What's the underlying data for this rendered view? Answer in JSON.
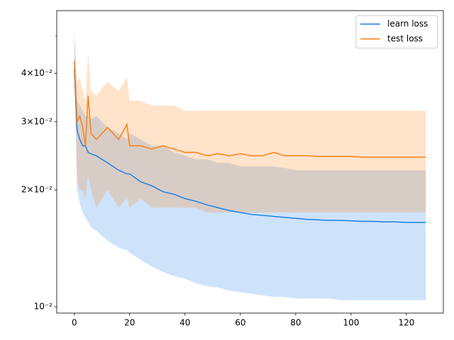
{
  "chart_data": {
    "type": "line",
    "log_y": true,
    "x": [
      0,
      1,
      2,
      3,
      4,
      5,
      6,
      8,
      12,
      16,
      19,
      20,
      24,
      28,
      32,
      36,
      40,
      44,
      48,
      52,
      56,
      60,
      64,
      68,
      72,
      76,
      80,
      84,
      88,
      92,
      96,
      100,
      104,
      108,
      112,
      116,
      120,
      124,
      127
    ],
    "series": [
      {
        "name": "learn loss",
        "color": "#1a80e8",
        "values": [
          0.041,
          0.0285,
          0.027,
          0.026,
          0.026,
          0.025,
          0.0248,
          0.0245,
          0.0235,
          0.0225,
          0.022,
          0.022,
          0.021,
          0.0205,
          0.0198,
          0.0195,
          0.019,
          0.0187,
          0.0183,
          0.018,
          0.0177,
          0.0175,
          0.0173,
          0.0172,
          0.0171,
          0.017,
          0.0169,
          0.0168,
          0.01675,
          0.0167,
          0.0167,
          0.01665,
          0.0166,
          0.0166,
          0.01655,
          0.01655,
          0.0165,
          0.0165,
          0.0165
        ],
        "lower": [
          0.041,
          0.02,
          0.0185,
          0.0175,
          0.017,
          0.0165,
          0.016,
          0.0157,
          0.0148,
          0.0142,
          0.014,
          0.0138,
          0.0132,
          0.0127,
          0.0123,
          0.012,
          0.0118,
          0.0115,
          0.0113,
          0.0112,
          0.011,
          0.0109,
          0.0108,
          0.0107,
          0.0106,
          0.0106,
          0.0105,
          0.0105,
          0.0105,
          0.0105,
          0.0104,
          0.0104,
          0.0104,
          0.0104,
          0.0104,
          0.0104,
          0.0104,
          0.0104,
          0.0104
        ],
        "upper": [
          0.052,
          0.034,
          0.033,
          0.032,
          0.031,
          0.031,
          0.0305,
          0.031,
          0.029,
          0.028,
          0.027,
          0.028,
          0.027,
          0.026,
          0.026,
          0.025,
          0.0245,
          0.024,
          0.024,
          0.0235,
          0.0235,
          0.023,
          0.023,
          0.023,
          0.023,
          0.0228,
          0.0225,
          0.0225,
          0.0225,
          0.0225,
          0.0225,
          0.0225,
          0.0225,
          0.0225,
          0.0225,
          0.0225,
          0.0225,
          0.0225,
          0.0225
        ]
      },
      {
        "name": "test loss",
        "color": "#ff7f0e",
        "values": [
          0.043,
          0.03,
          0.031,
          0.029,
          0.026,
          0.035,
          0.028,
          0.027,
          0.029,
          0.027,
          0.0295,
          0.026,
          0.026,
          0.0255,
          0.026,
          0.0255,
          0.025,
          0.025,
          0.0245,
          0.0248,
          0.0245,
          0.0248,
          0.0245,
          0.0245,
          0.025,
          0.0245,
          0.0245,
          0.0245,
          0.0244,
          0.0244,
          0.0244,
          0.0244,
          0.0243,
          0.0243,
          0.0243,
          0.0243,
          0.0243,
          0.0243,
          0.0243
        ],
        "lower": [
          0.043,
          0.021,
          0.02,
          0.02,
          0.019,
          0.022,
          0.02,
          0.018,
          0.02,
          0.018,
          0.019,
          0.018,
          0.019,
          0.018,
          0.018,
          0.018,
          0.018,
          0.018,
          0.0175,
          0.0175,
          0.0175,
          0.0175,
          0.0175,
          0.0175,
          0.0175,
          0.0175,
          0.0175,
          0.0175,
          0.0175,
          0.0175,
          0.0175,
          0.0175,
          0.0175,
          0.0175,
          0.0175,
          0.0175,
          0.0175,
          0.0175,
          0.0175
        ],
        "upper": [
          0.05,
          0.038,
          0.039,
          0.036,
          0.034,
          0.045,
          0.036,
          0.035,
          0.038,
          0.036,
          0.039,
          0.034,
          0.034,
          0.033,
          0.033,
          0.033,
          0.032,
          0.032,
          0.032,
          0.032,
          0.032,
          0.032,
          0.032,
          0.032,
          0.032,
          0.032,
          0.032,
          0.032,
          0.032,
          0.032,
          0.032,
          0.032,
          0.032,
          0.032,
          0.032,
          0.032,
          0.032,
          0.032,
          0.032
        ]
      }
    ],
    "xlim": [
      -6.35,
      133.35
    ],
    "xticks": [
      0,
      20,
      40,
      60,
      80,
      100,
      120
    ],
    "ylim": [
      0.00963,
      0.058
    ],
    "yticks": [
      {
        "value": 0.01,
        "label": "10⁻²"
      },
      {
        "value": 0.02,
        "label": "2×10⁻²"
      },
      {
        "value": 0.03,
        "label": "3×10⁻²"
      },
      {
        "value": 0.04,
        "label": "4×10⁻²"
      }
    ],
    "yticks_unlabeled": [
      0.05
    ],
    "band_opacity": 0.22,
    "legend": "upper right"
  }
}
